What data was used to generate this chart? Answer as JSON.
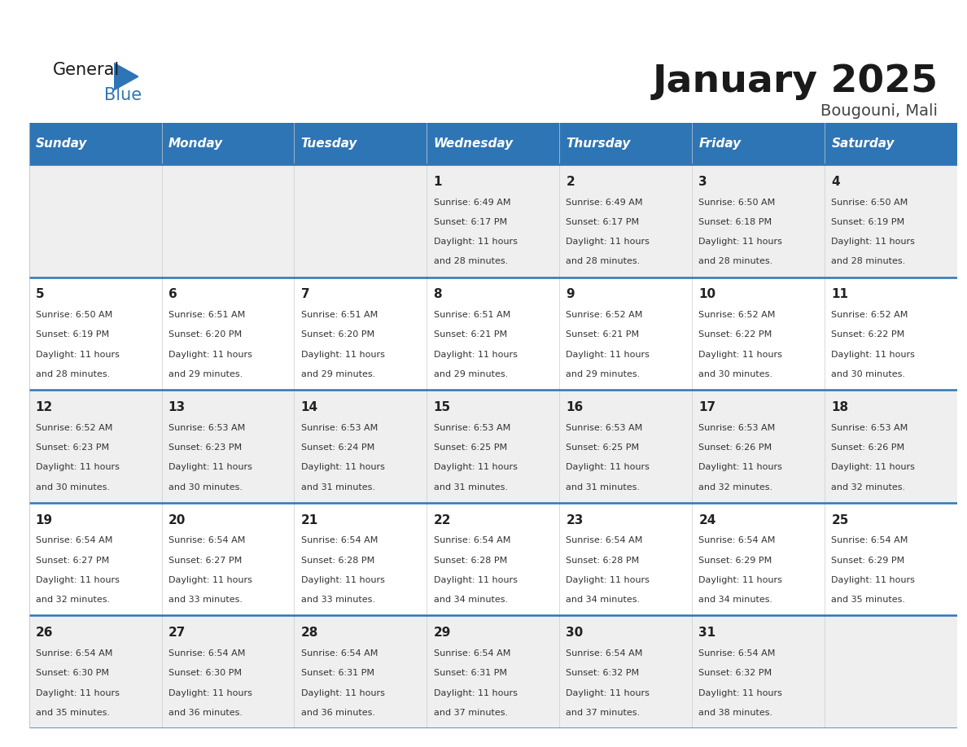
{
  "title": "January 2025",
  "subtitle": "Bougouni, Mali",
  "days_of_week": [
    "Sunday",
    "Monday",
    "Tuesday",
    "Wednesday",
    "Thursday",
    "Friday",
    "Saturday"
  ],
  "header_bg": "#2E75B6",
  "header_text": "#FFFFFF",
  "row_bg_even": "#EFEFEF",
  "row_bg_odd": "#FFFFFF",
  "row_border": "#2E75B6",
  "day_num_color": "#222222",
  "cell_text_color": "#333333",
  "calendar_data": [
    [
      null,
      null,
      null,
      {
        "day": 1,
        "sunrise": "6:49 AM",
        "sunset": "6:17 PM",
        "daylight": "11 hours and 28 minutes"
      },
      {
        "day": 2,
        "sunrise": "6:49 AM",
        "sunset": "6:17 PM",
        "daylight": "11 hours and 28 minutes"
      },
      {
        "day": 3,
        "sunrise": "6:50 AM",
        "sunset": "6:18 PM",
        "daylight": "11 hours and 28 minutes"
      },
      {
        "day": 4,
        "sunrise": "6:50 AM",
        "sunset": "6:19 PM",
        "daylight": "11 hours and 28 minutes"
      }
    ],
    [
      {
        "day": 5,
        "sunrise": "6:50 AM",
        "sunset": "6:19 PM",
        "daylight": "11 hours and 28 minutes"
      },
      {
        "day": 6,
        "sunrise": "6:51 AM",
        "sunset": "6:20 PM",
        "daylight": "11 hours and 29 minutes"
      },
      {
        "day": 7,
        "sunrise": "6:51 AM",
        "sunset": "6:20 PM",
        "daylight": "11 hours and 29 minutes"
      },
      {
        "day": 8,
        "sunrise": "6:51 AM",
        "sunset": "6:21 PM",
        "daylight": "11 hours and 29 minutes"
      },
      {
        "day": 9,
        "sunrise": "6:52 AM",
        "sunset": "6:21 PM",
        "daylight": "11 hours and 29 minutes"
      },
      {
        "day": 10,
        "sunrise": "6:52 AM",
        "sunset": "6:22 PM",
        "daylight": "11 hours and 30 minutes"
      },
      {
        "day": 11,
        "sunrise": "6:52 AM",
        "sunset": "6:22 PM",
        "daylight": "11 hours and 30 minutes"
      }
    ],
    [
      {
        "day": 12,
        "sunrise": "6:52 AM",
        "sunset": "6:23 PM",
        "daylight": "11 hours and 30 minutes"
      },
      {
        "day": 13,
        "sunrise": "6:53 AM",
        "sunset": "6:23 PM",
        "daylight": "11 hours and 30 minutes"
      },
      {
        "day": 14,
        "sunrise": "6:53 AM",
        "sunset": "6:24 PM",
        "daylight": "11 hours and 31 minutes"
      },
      {
        "day": 15,
        "sunrise": "6:53 AM",
        "sunset": "6:25 PM",
        "daylight": "11 hours and 31 minutes"
      },
      {
        "day": 16,
        "sunrise": "6:53 AM",
        "sunset": "6:25 PM",
        "daylight": "11 hours and 31 minutes"
      },
      {
        "day": 17,
        "sunrise": "6:53 AM",
        "sunset": "6:26 PM",
        "daylight": "11 hours and 32 minutes"
      },
      {
        "day": 18,
        "sunrise": "6:53 AM",
        "sunset": "6:26 PM",
        "daylight": "11 hours and 32 minutes"
      }
    ],
    [
      {
        "day": 19,
        "sunrise": "6:54 AM",
        "sunset": "6:27 PM",
        "daylight": "11 hours and 32 minutes"
      },
      {
        "day": 20,
        "sunrise": "6:54 AM",
        "sunset": "6:27 PM",
        "daylight": "11 hours and 33 minutes"
      },
      {
        "day": 21,
        "sunrise": "6:54 AM",
        "sunset": "6:28 PM",
        "daylight": "11 hours and 33 minutes"
      },
      {
        "day": 22,
        "sunrise": "6:54 AM",
        "sunset": "6:28 PM",
        "daylight": "11 hours and 34 minutes"
      },
      {
        "day": 23,
        "sunrise": "6:54 AM",
        "sunset": "6:28 PM",
        "daylight": "11 hours and 34 minutes"
      },
      {
        "day": 24,
        "sunrise": "6:54 AM",
        "sunset": "6:29 PM",
        "daylight": "11 hours and 34 minutes"
      },
      {
        "day": 25,
        "sunrise": "6:54 AM",
        "sunset": "6:29 PM",
        "daylight": "11 hours and 35 minutes"
      }
    ],
    [
      {
        "day": 26,
        "sunrise": "6:54 AM",
        "sunset": "6:30 PM",
        "daylight": "11 hours and 35 minutes"
      },
      {
        "day": 27,
        "sunrise": "6:54 AM",
        "sunset": "6:30 PM",
        "daylight": "11 hours and 36 minutes"
      },
      {
        "day": 28,
        "sunrise": "6:54 AM",
        "sunset": "6:31 PM",
        "daylight": "11 hours and 36 minutes"
      },
      {
        "day": 29,
        "sunrise": "6:54 AM",
        "sunset": "6:31 PM",
        "daylight": "11 hours and 37 minutes"
      },
      {
        "day": 30,
        "sunrise": "6:54 AM",
        "sunset": "6:32 PM",
        "daylight": "11 hours and 37 minutes"
      },
      {
        "day": 31,
        "sunrise": "6:54 AM",
        "sunset": "6:32 PM",
        "daylight": "11 hours and 38 minutes"
      },
      null
    ]
  ]
}
